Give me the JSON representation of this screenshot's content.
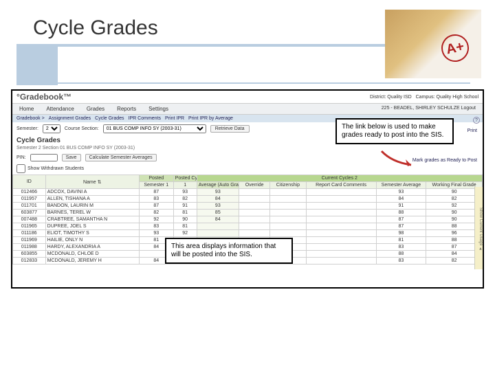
{
  "slide": {
    "title": "Cycle Grades"
  },
  "app": {
    "brand": "Gradebook",
    "district_label": "District: Quality ISD",
    "campus_label": "Campus: Quality High School",
    "user_label": "225 - BEADEL, SHIRLEY SCHULZE   Logout",
    "tabs": [
      "Home",
      "Attendance",
      "Grades",
      "Reports",
      "Settings"
    ],
    "subnav": [
      "Gradebook >",
      "Assignment Grades",
      "Cycle Grades",
      "IPR Comments",
      "Print IPR",
      "Print IPR by Average"
    ],
    "toolbar": {
      "semester_label": "Semester:",
      "semester_value": "2",
      "course_label": "Course Section:",
      "course_value": "01 BUS COMP INFO SY (2003-31)",
      "retrieve_label": "Retrieve Data"
    },
    "section_title": "Cycle Grades",
    "subline": "Semester 2 Section 01 BUS COMP INFO SY (2003-31)",
    "pin_label": "PIN:",
    "save_label": "Save",
    "calc_label": "Calculate Semester Averages",
    "withdrawn_label": "Show Withdrawn Students",
    "link_ready": "Mark grades as Ready to Post",
    "print_label": "Print",
    "help_glyph": "?",
    "stickytab": "Show Current Usage ▲",
    "columns": {
      "id": "ID",
      "name": "Name",
      "group_posted": "Posted",
      "group_current": "Current Cycles 2",
      "posted_cycles": "Posted Cycles",
      "sem1": "Semester 1",
      "c1": "1",
      "avg": "Average (Auto Grade)",
      "override": "Override",
      "citizenship": "Citizenship",
      "report_card": "Report Card Comments",
      "sem_avg": "Semester Average",
      "final": "Working Final Grade"
    },
    "rows": [
      {
        "id": "012466",
        "name": "ADCOX, DAVINI A",
        "sem1": "87",
        "c1": "93",
        "avg": "93",
        "citizenship": "",
        "sem_avg": "93",
        "final": "90"
      },
      {
        "id": "011957",
        "name": "ALLEN, TISHANA A",
        "sem1": "83",
        "c1": "82",
        "avg": "84",
        "citizenship": "",
        "sem_avg": "84",
        "final": "82"
      },
      {
        "id": "011701",
        "name": "BANDON, LAURIN M",
        "sem1": "87",
        "c1": "91",
        "avg": "93",
        "citizenship": "",
        "sem_avg": "91",
        "final": "92"
      },
      {
        "id": "603877",
        "name": "BARNES, TEREL W",
        "sem1": "82",
        "c1": "81",
        "avg": "85",
        "citizenship": "",
        "sem_avg": "88",
        "final": "90"
      },
      {
        "id": "007488",
        "name": "CRABTREE, SAMANTHA N",
        "sem1": "92",
        "c1": "90",
        "avg": "84",
        "citizenship": "",
        "sem_avg": "87",
        "final": "90"
      },
      {
        "id": "011965",
        "name": "DUPREE, JOEL S",
        "sem1": "83",
        "c1": "81",
        "avg": "",
        "citizenship": "",
        "sem_avg": "87",
        "final": "88"
      },
      {
        "id": "011186",
        "name": "ELIOT, TIMOTHY S",
        "sem1": "93",
        "c1": "92",
        "avg": "",
        "citizenship": "",
        "sem_avg": "98",
        "final": "96"
      },
      {
        "id": "011969",
        "name": "HAILIE, ONLY N",
        "sem1": "81",
        "c1": "83",
        "avg": "",
        "citizenship": "",
        "sem_avg": "81",
        "final": "88"
      },
      {
        "id": "011988",
        "name": "HARDY, ALEXANDRIA A",
        "sem1": "84",
        "c1": "84",
        "avg": "",
        "citizenship": "",
        "sem_avg": "83",
        "final": "87"
      },
      {
        "id": "603855",
        "name": "MCDONALD, CHLOE D",
        "sem1": "",
        "c1": "",
        "avg": "",
        "citizenship": "",
        "sem_avg": "88",
        "final": "84"
      },
      {
        "id": "012833",
        "name": "MCDONALD, JEREMY H",
        "sem1": "84",
        "c1": "83",
        "avg": "77",
        "citizenship": "",
        "sem_avg": "83",
        "final": "82"
      }
    ]
  },
  "callouts": {
    "top": "The link below is used to make grades ready to post into the SIS.",
    "mid": "This area displays information that will be posted into the SIS."
  },
  "colors": {
    "accent": "#b9cde0",
    "header_green": "#b7d78f",
    "row_green": "#edf3e4",
    "arrow": "#c0302b"
  }
}
